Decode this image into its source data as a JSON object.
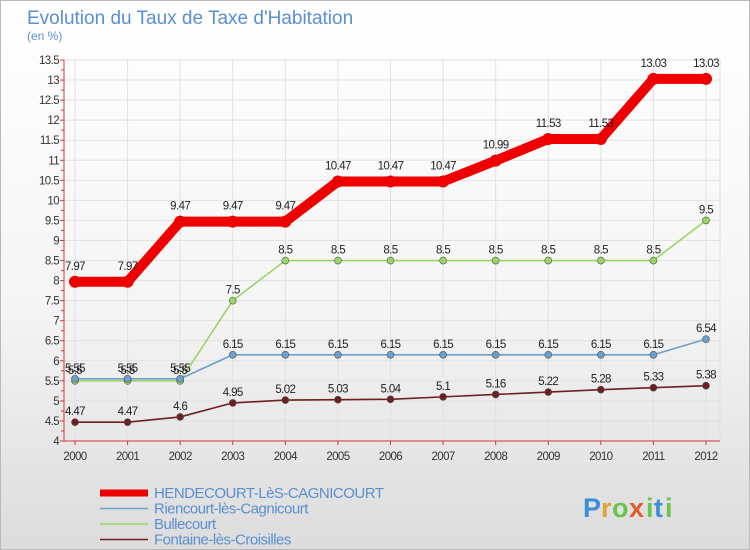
{
  "chart_data": {
    "type": "line",
    "title": "Evolution du Taux de Taxe d'Habitation",
    "subtitle": "(en %)",
    "categories": [
      "2000",
      "2001",
      "2002",
      "2003",
      "2004",
      "2005",
      "2006",
      "2007",
      "2008",
      "2009",
      "2010",
      "2011",
      "2012"
    ],
    "ylim": [
      4,
      13.5
    ],
    "yticks": [
      "4",
      "4.5",
      "5",
      "5.5",
      "6",
      "6.5",
      "7",
      "7.5",
      "8",
      "8.5",
      "9",
      "9.5",
      "10",
      "10.5",
      "11",
      "11.5",
      "12",
      "12.5",
      "13",
      "13.5"
    ],
    "grid": true,
    "series": [
      {
        "name": "Fontaine-lès-Croisilles",
        "color": "#6e1f24",
        "labels": [
          "4.47",
          "4.47",
          "4.6",
          "4.95",
          "5.02",
          "5.03",
          "5.04",
          "5.1",
          "5.16",
          "5.22",
          "5.28",
          "5.33",
          "5.38"
        ],
        "values": [
          4.47,
          4.47,
          4.6,
          4.95,
          5.02,
          5.03,
          5.04,
          5.1,
          5.16,
          5.22,
          5.28,
          5.33,
          5.38
        ]
      },
      {
        "name": "Bullecourt",
        "color": "#99d665",
        "labels": [
          "5.5",
          "5.5",
          "5.5",
          "7.5",
          "8.5",
          "8.5",
          "8.5",
          "8.5",
          "8.5",
          "8.5",
          "8.5",
          "8.5",
          "9.5"
        ],
        "values": [
          5.5,
          5.5,
          5.5,
          7.5,
          8.5,
          8.5,
          8.5,
          8.5,
          8.5,
          8.5,
          8.5,
          8.5,
          9.5
        ]
      },
      {
        "name": "Riencourt-lès-Cagnicourt",
        "color": "#6c9fc9",
        "labels": [
          "5.55",
          "5.55",
          "5.55",
          "6.15",
          "6.15",
          "6.15",
          "6.15",
          "6.15",
          "6.15",
          "6.15",
          "6.15",
          "6.15",
          "6.54"
        ],
        "values": [
          5.55,
          5.55,
          5.55,
          6.15,
          6.15,
          6.15,
          6.15,
          6.15,
          6.15,
          6.15,
          6.15,
          6.15,
          6.54
        ]
      },
      {
        "name": "HENDECOURT-LèS-CAGNICOURT",
        "color": "#ee0000",
        "labels": [
          "7.97",
          "7.97",
          "9.47",
          "9.47",
          "9.47",
          "10.47",
          "10.47",
          "10.47",
          "10.99",
          "11.53",
          "11.53",
          "13.03",
          "13.03"
        ],
        "values": [
          7.97,
          7.97,
          9.47,
          9.47,
          9.47,
          10.47,
          10.47,
          10.47,
          10.99,
          11.53,
          11.53,
          13.03,
          13.03
        ]
      }
    ],
    "legend": {
      "placement": "bottom-left",
      "items": [
        {
          "name": "HENDECOURT-LèS-CAGNICOURT",
          "color": "#ee0000"
        },
        {
          "name": "Riencourt-lès-Cagnicourt",
          "color": "#6c9fc9"
        },
        {
          "name": "Bullecourt",
          "color": "#99d665"
        },
        {
          "name": "Fontaine-lès-Croisilles",
          "color": "#6e1f24"
        }
      ]
    }
  },
  "logo": {
    "text": "Proxiti"
  }
}
